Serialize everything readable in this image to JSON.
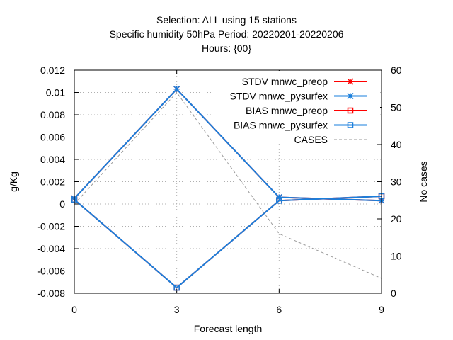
{
  "chart_data": {
    "type": "line",
    "title_lines": [
      "Selection: ALL using    15 stations",
      "Specific humidity 50hPa   Period: 20220201-20220206",
      "Hours: {00}"
    ],
    "xlabel": "Forecast length",
    "ylabel": "g/Kg",
    "y2label": "No cases",
    "x": [
      0,
      3,
      6,
      9
    ],
    "xlim": [
      0,
      9
    ],
    "ylim": [
      -0.008,
      0.012
    ],
    "y2lim": [
      0,
      60
    ],
    "x_ticks": [
      "0",
      "3",
      "6",
      "9"
    ],
    "y_ticks": [
      "-0.008",
      "-0.006",
      "-0.004",
      "-0.002",
      "0",
      "0.002",
      "0.004",
      "0.006",
      "0.008",
      "0.01",
      "0.012"
    ],
    "y2_ticks": [
      "0",
      "10",
      "20",
      "30",
      "40",
      "50",
      "60"
    ],
    "grid": true,
    "legend_position": "top-right",
    "series": [
      {
        "name": "STDV mnwc_preop",
        "axis": "y",
        "color": "#ff0000",
        "marker": "star",
        "dash": false,
        "values": [
          0.0005,
          0.0103,
          0.0006,
          0.0003
        ]
      },
      {
        "name": "STDV mnwc_pysurfex",
        "axis": "y",
        "color": "#1a7fdc",
        "marker": "star",
        "dash": false,
        "values": [
          0.0005,
          0.0103,
          0.0006,
          0.0003
        ]
      },
      {
        "name": "BIAS mnwc_preop",
        "axis": "y",
        "color": "#ff0000",
        "marker": "square",
        "dash": false,
        "values": [
          0.0004,
          -0.0075,
          0.0003,
          0.0007
        ]
      },
      {
        "name": "BIAS mnwc_pysurfex",
        "axis": "y",
        "color": "#1a7fdc",
        "marker": "square",
        "dash": false,
        "values": [
          0.0004,
          -0.0075,
          0.0003,
          0.0007
        ]
      },
      {
        "name": "CASES",
        "axis": "y2",
        "color": "#999999",
        "marker": "none",
        "dash": true,
        "values": [
          24,
          54,
          16,
          4
        ]
      }
    ]
  }
}
